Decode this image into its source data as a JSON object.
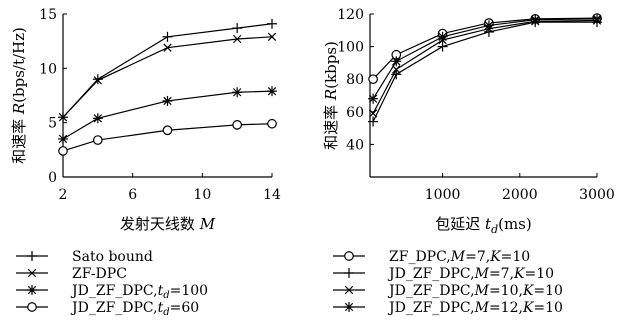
{
  "chart_data": [
    {
      "type": "line",
      "xlabel_cn": "发射天线数",
      "xlabel_var": "M",
      "ylabel_cn": "和速率",
      "ylabel_var": "R",
      "ylabel_unit": "(bps/t/Hz)",
      "xlim": [
        2,
        14
      ],
      "ylim": [
        0,
        15
      ],
      "xticks": [
        2,
        6,
        10,
        14
      ],
      "yticks": [
        0,
        5,
        10,
        15
      ],
      "grid": false,
      "legend_position": "below",
      "series": [
        {
          "name": "Sato bound",
          "marker": "plus",
          "x": [
            2,
            4,
            8,
            12,
            14
          ],
          "y": [
            5.5,
            9.0,
            12.9,
            13.7,
            14.1
          ]
        },
        {
          "name": "ZF-DPC",
          "marker": "cross",
          "x": [
            2,
            4,
            8,
            12,
            14
          ],
          "y": [
            5.5,
            8.9,
            11.9,
            12.7,
            12.9
          ]
        },
        {
          "name": "JD_ZF_DPC,t_d=100",
          "marker": "star",
          "x": [
            2,
            4,
            8,
            12,
            14
          ],
          "y": [
            3.5,
            5.4,
            7.0,
            7.8,
            7.9
          ]
        },
        {
          "name": "JD_ZF_DPC,t_d=60",
          "marker": "circle",
          "x": [
            2,
            4,
            8,
            12,
            14
          ],
          "y": [
            2.4,
            3.4,
            4.3,
            4.8,
            4.9
          ]
        }
      ],
      "legend": [
        {
          "marker": "plus",
          "parts": [
            {
              "t": "Sato bound"
            }
          ]
        },
        {
          "marker": "cross",
          "parts": [
            {
              "t": "ZF-DPC"
            }
          ]
        },
        {
          "marker": "star",
          "parts": [
            {
              "t": "JD_ZF_DPC,"
            },
            {
              "t": "t",
              "i": true
            },
            {
              "t": "d",
              "sub": true
            },
            {
              "t": "=100"
            }
          ]
        },
        {
          "marker": "circle",
          "parts": [
            {
              "t": "JD_ZF_DPC,"
            },
            {
              "t": "t",
              "i": true
            },
            {
              "t": "d",
              "sub": true
            },
            {
              "t": "=60"
            }
          ]
        }
      ]
    },
    {
      "type": "line",
      "xlabel_cn": "包延迟",
      "xlabel_var": "t",
      "xlabel_sub": "d",
      "xlabel_unit": "(ms)",
      "ylabel_cn": "和速率",
      "ylabel_var": "R",
      "ylabel_unit": "(kbps)",
      "xlim": [
        60,
        3000
      ],
      "ylim": [
        20,
        120
      ],
      "xticks": [
        1000,
        2000,
        3000
      ],
      "yticks": [
        40,
        60,
        80,
        100,
        120
      ],
      "grid": false,
      "legend_position": "below",
      "series": [
        {
          "name": "ZF_DPC,M=7,K=10",
          "marker": "circle",
          "x": [
            100,
            400,
            1000,
            1600,
            2200,
            3000
          ],
          "y": [
            80,
            95,
            108,
            114.5,
            117,
            117.5
          ]
        },
        {
          "name": "JD_ZF_DPC,M=7,K=10",
          "marker": "plus",
          "x": [
            100,
            400,
            1000,
            1600,
            2200,
            3000
          ],
          "y": [
            54,
            83,
            100,
            109,
            115,
            115
          ]
        },
        {
          "name": "JD_ZF_DPC,M=10,K=10",
          "marker": "cross",
          "x": [
            100,
            400,
            1000,
            1600,
            2200,
            3000
          ],
          "y": [
            59,
            86,
            104,
            111,
            115.5,
            116
          ]
        },
        {
          "name": "JD_ZF_DPC,M=12,K=10",
          "marker": "star",
          "x": [
            100,
            400,
            1000,
            1600,
            2200,
            3000
          ],
          "y": [
            68,
            91,
            106,
            113,
            116.5,
            117
          ]
        }
      ],
      "legend": [
        {
          "marker": "circle",
          "parts": [
            {
              "t": "ZF_DPC,"
            },
            {
              "t": "M",
              "i": true
            },
            {
              "t": "=7,"
            },
            {
              "t": "K",
              "i": true
            },
            {
              "t": "=10"
            }
          ]
        },
        {
          "marker": "plus",
          "parts": [
            {
              "t": "JD_ZF_DPC,"
            },
            {
              "t": "M",
              "i": true
            },
            {
              "t": "=7,"
            },
            {
              "t": "K",
              "i": true
            },
            {
              "t": "=10"
            }
          ]
        },
        {
          "marker": "cross",
          "parts": [
            {
              "t": "JD_ZF_DPC,"
            },
            {
              "t": "M",
              "i": true
            },
            {
              "t": "=10,"
            },
            {
              "t": "K",
              "i": true
            },
            {
              "t": "=10"
            }
          ]
        },
        {
          "marker": "star",
          "parts": [
            {
              "t": "JD_ZF_DPC,"
            },
            {
              "t": "M",
              "i": true
            },
            {
              "t": "=12,"
            },
            {
              "t": "K",
              "i": true
            },
            {
              "t": "=10"
            }
          ]
        }
      ]
    }
  ]
}
